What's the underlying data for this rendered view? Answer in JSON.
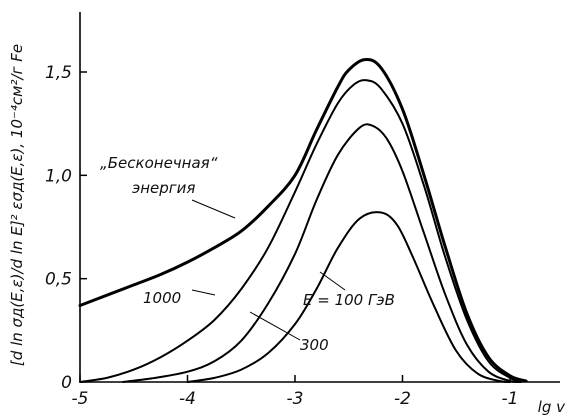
{
  "chart_data": {
    "type": "line",
    "xlabel": "lg v",
    "ylabel": "[d ln σд(E,ε)/d ln E]² εσд(E,ε), 10⁻⁴см²/г Fe",
    "xlim": [
      -5,
      -0.5
    ],
    "ylim": [
      0,
      1.7
    ],
    "x_ticks": [
      {
        "value": -5,
        "label": "-5"
      },
      {
        "value": -4,
        "label": "-4"
      },
      {
        "value": -3,
        "label": "-3"
      },
      {
        "value": -2,
        "label": "-2"
      },
      {
        "value": -1,
        "label": "-1"
      }
    ],
    "y_ticks": [
      {
        "value": 0,
        "label": "0"
      },
      {
        "value": 0.5,
        "label": "0,5"
      },
      {
        "value": 1.0,
        "label": "1,0"
      },
      {
        "value": 1.5,
        "label": "1,5"
      }
    ],
    "grid": false,
    "series": [
      {
        "name": "„Бесконечная“ энергия",
        "stroke": "#000000",
        "heavy": true,
        "points": [
          [
            -5.0,
            0.37
          ],
          [
            -4.75,
            0.42
          ],
          [
            -4.5,
            0.47
          ],
          [
            -4.25,
            0.52
          ],
          [
            -4.0,
            0.58
          ],
          [
            -3.75,
            0.65
          ],
          [
            -3.5,
            0.73
          ],
          [
            -3.25,
            0.85
          ],
          [
            -3.0,
            1.0
          ],
          [
            -2.8,
            1.22
          ],
          [
            -2.6,
            1.43
          ],
          [
            -2.5,
            1.51
          ],
          [
            -2.35,
            1.56
          ],
          [
            -2.2,
            1.52
          ],
          [
            -2.0,
            1.32
          ],
          [
            -1.8,
            1.0
          ],
          [
            -1.6,
            0.65
          ],
          [
            -1.4,
            0.33
          ],
          [
            -1.2,
            0.12
          ],
          [
            -1.0,
            0.03
          ],
          [
            -0.85,
            0.005
          ]
        ]
      },
      {
        "name": "1000",
        "stroke": "#000000",
        "heavy": false,
        "points": [
          [
            -5.0,
            0.0
          ],
          [
            -4.75,
            0.02
          ],
          [
            -4.5,
            0.06
          ],
          [
            -4.25,
            0.12
          ],
          [
            -4.0,
            0.2
          ],
          [
            -3.75,
            0.3
          ],
          [
            -3.5,
            0.45
          ],
          [
            -3.25,
            0.65
          ],
          [
            -3.0,
            0.92
          ],
          [
            -2.8,
            1.15
          ],
          [
            -2.6,
            1.35
          ],
          [
            -2.45,
            1.44
          ],
          [
            -2.33,
            1.46
          ],
          [
            -2.2,
            1.42
          ],
          [
            -2.0,
            1.25
          ],
          [
            -1.8,
            0.95
          ],
          [
            -1.6,
            0.6
          ],
          [
            -1.4,
            0.3
          ],
          [
            -1.2,
            0.1
          ],
          [
            -1.0,
            0.02
          ],
          [
            -0.9,
            0.0
          ]
        ]
      },
      {
        "name": "300",
        "stroke": "#000000",
        "heavy": false,
        "points": [
          [
            -4.6,
            0.0
          ],
          [
            -4.3,
            0.02
          ],
          [
            -4.0,
            0.05
          ],
          [
            -3.75,
            0.1
          ],
          [
            -3.5,
            0.2
          ],
          [
            -3.25,
            0.38
          ],
          [
            -3.0,
            0.62
          ],
          [
            -2.8,
            0.88
          ],
          [
            -2.6,
            1.1
          ],
          [
            -2.4,
            1.23
          ],
          [
            -2.28,
            1.24
          ],
          [
            -2.15,
            1.18
          ],
          [
            -2.0,
            1.02
          ],
          [
            -1.8,
            0.72
          ],
          [
            -1.6,
            0.42
          ],
          [
            -1.4,
            0.18
          ],
          [
            -1.2,
            0.05
          ],
          [
            -1.0,
            0.005
          ],
          [
            -0.9,
            0.0
          ]
        ]
      },
      {
        "name": "E = 100 ГэВ",
        "stroke": "#000000",
        "heavy": false,
        "points": [
          [
            -4.0,
            0.0
          ],
          [
            -3.75,
            0.02
          ],
          [
            -3.5,
            0.06
          ],
          [
            -3.25,
            0.14
          ],
          [
            -3.0,
            0.28
          ],
          [
            -2.8,
            0.45
          ],
          [
            -2.6,
            0.65
          ],
          [
            -2.4,
            0.79
          ],
          [
            -2.2,
            0.82
          ],
          [
            -2.05,
            0.76
          ],
          [
            -1.9,
            0.6
          ],
          [
            -1.7,
            0.36
          ],
          [
            -1.5,
            0.15
          ],
          [
            -1.3,
            0.04
          ],
          [
            -1.1,
            0.005
          ],
          [
            -1.0,
            0.0
          ]
        ]
      }
    ],
    "annotations": [
      {
        "text": "„Бесконечная“",
        "series": 0
      },
      {
        "text": "энергия",
        "series": 0
      },
      {
        "text": "1000",
        "series": 1
      },
      {
        "text": "300",
        "series": 2
      },
      {
        "text": "E = 100 ГэВ",
        "series": 3
      }
    ]
  }
}
